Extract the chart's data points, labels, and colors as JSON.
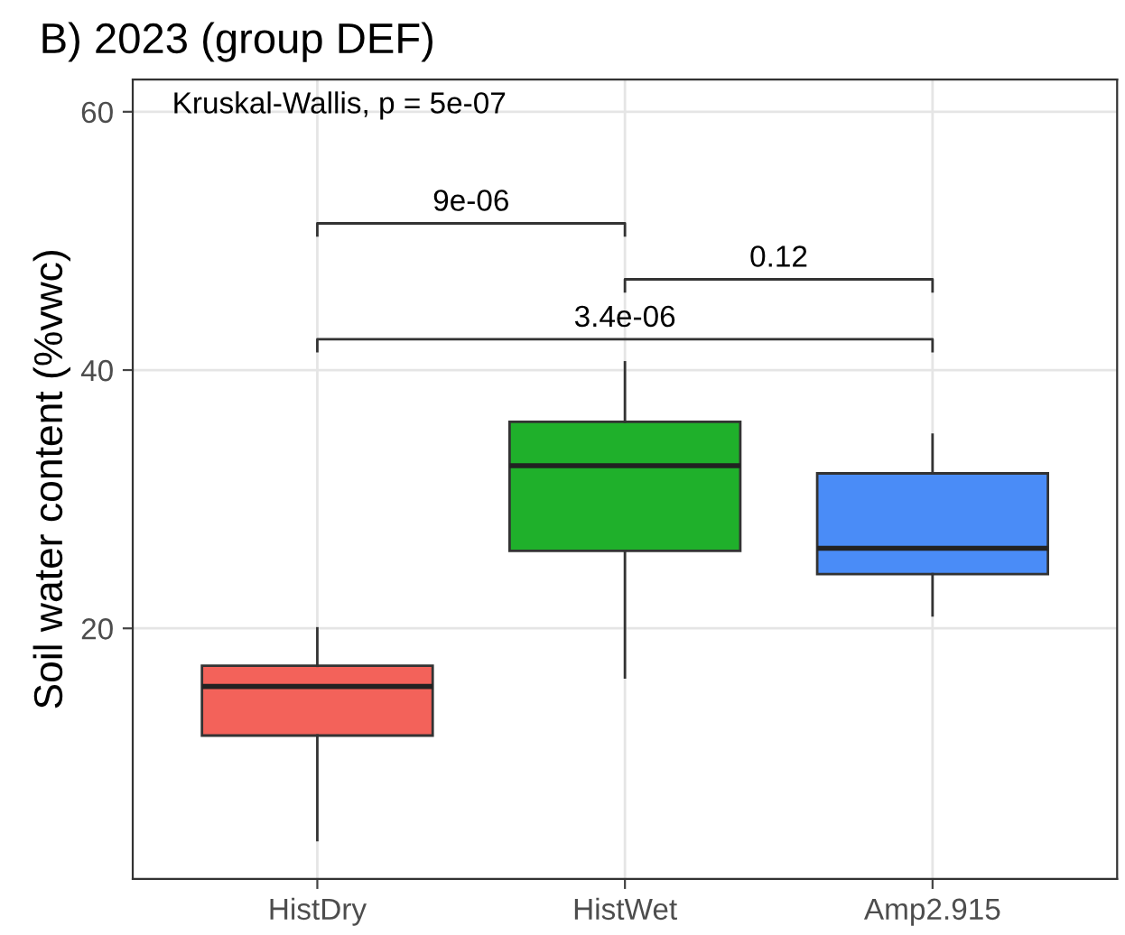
{
  "chart_data": {
    "type": "box",
    "title": "B) 2023 (group DEF)",
    "ylabel": "Soil water content (%vwc)",
    "categories": [
      "HistDry",
      "HistWet",
      "Amp2.915"
    ],
    "colors": [
      "#f3625a",
      "#1fb02b",
      "#4a8cf7"
    ],
    "boxes": [
      {
        "low": 3.6,
        "q1": 11.7,
        "median": 15.5,
        "q3": 17.1,
        "high": 20.0
      },
      {
        "low": 16.2,
        "q1": 26.0,
        "median": 32.6,
        "q3": 36.0,
        "high": 40.6
      },
      {
        "low": 21.0,
        "q1": 24.2,
        "median": 26.2,
        "q3": 32.0,
        "high": 35.0
      }
    ],
    "ylim": [
      0.6,
      62.5
    ],
    "yticks": [
      20,
      40,
      60
    ],
    "grid": true,
    "annotations": [
      "Kruskal-Wallis, p = 5e-07",
      "9e-06",
      "0.12",
      "3.4e-06"
    ]
  }
}
